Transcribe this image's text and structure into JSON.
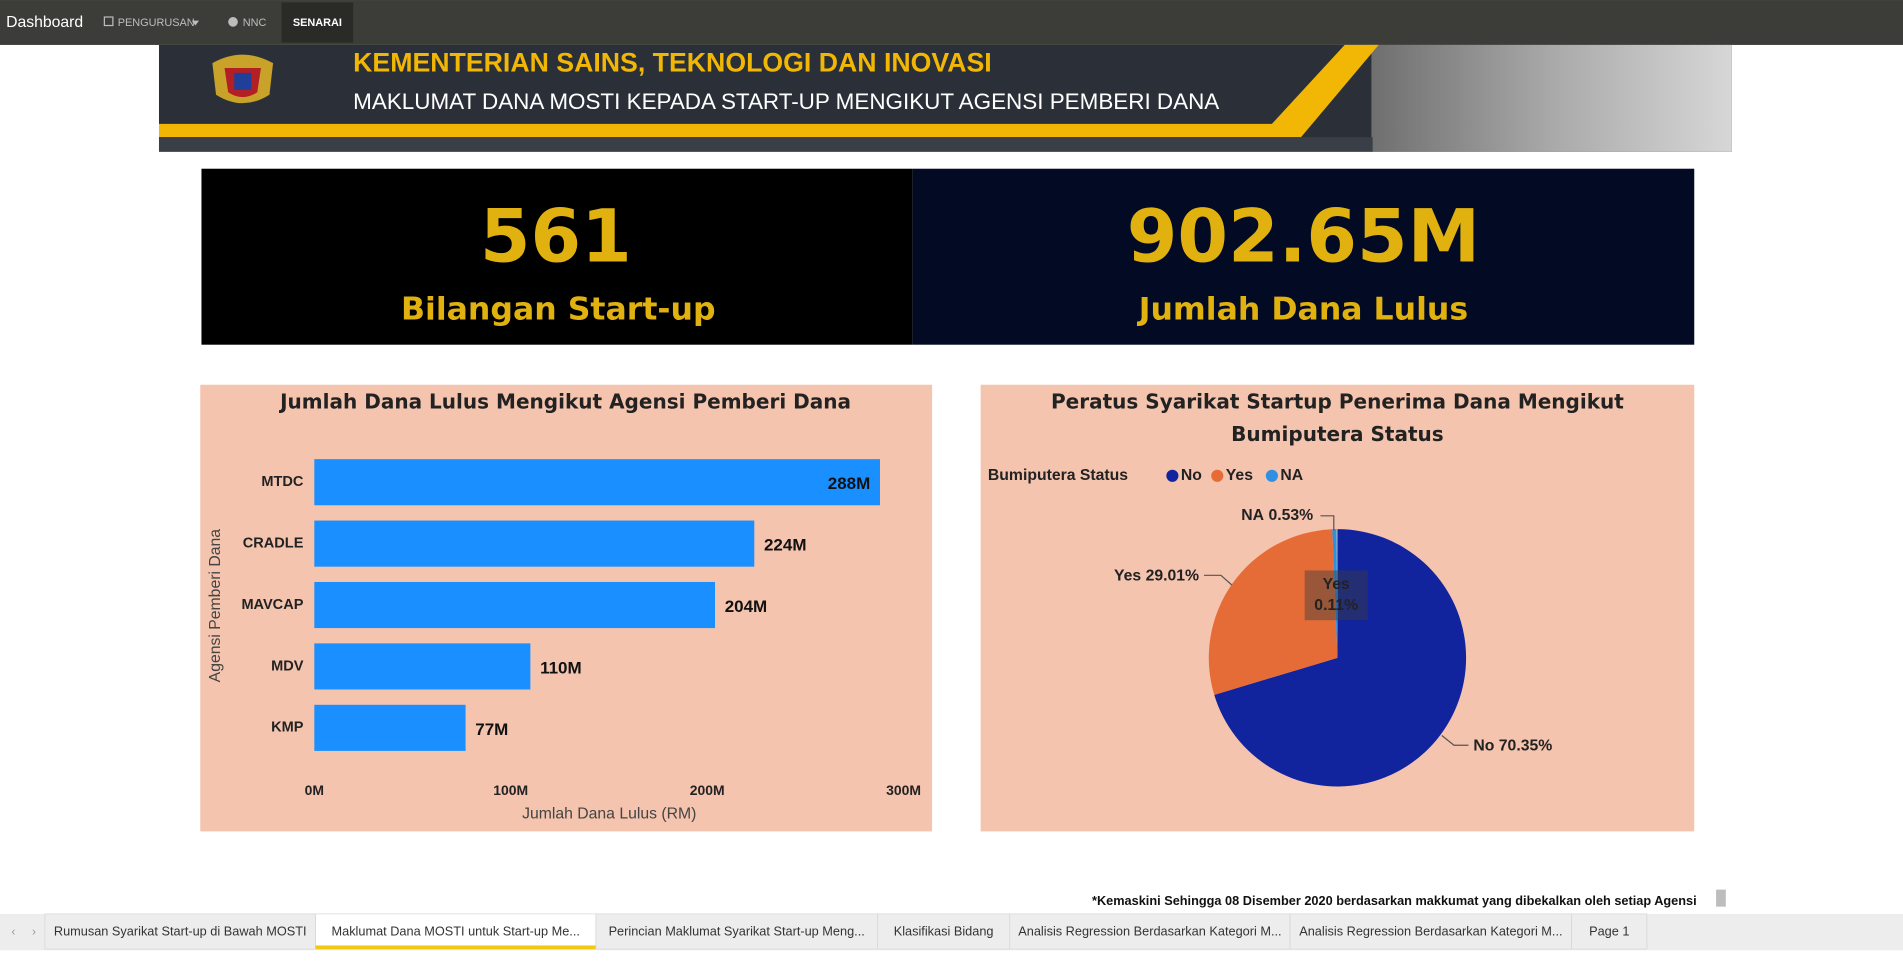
{
  "nav": {
    "brand": "Dashboard",
    "items": [
      "PENGURUSAN",
      "NNC",
      "SENARAI"
    ]
  },
  "banner": {
    "title": "KEMENTERIAN SAINS, TEKNOLOGI DAN INOVASI",
    "subtitle": "MAKLUMAT  DANA MOSTI KEPADA START-UP MENGIKUT AGENSI PEMBERI DANA"
  },
  "kpis": [
    {
      "value": "561",
      "label": "Bilangan Start-up"
    },
    {
      "value": "902.65M",
      "label": "Jumlah Dana Lulus"
    }
  ],
  "chart_data": [
    {
      "type": "bar",
      "orientation": "horizontal",
      "title": "Jumlah Dana Lulus Mengikut Agensi Pemberi Dana",
      "x_label": "Jumlah Dana Lulus (RM)",
      "y_label": "Agensi Pemberi Dana",
      "categories": [
        "MTDC",
        "CRADLE",
        "MAVCAP",
        "MDV",
        "KMP"
      ],
      "values": [
        288,
        224,
        204,
        110,
        77
      ],
      "value_labels": [
        "288M",
        "224M",
        "204M",
        "110M",
        "77M"
      ],
      "color": "#1a8fff",
      "xlim": [
        0,
        300
      ],
      "xticks": [
        {
          "value": 0,
          "label": "0M"
        },
        {
          "value": 100,
          "label": "100M"
        },
        {
          "value": 200,
          "label": "200M"
        },
        {
          "value": 300,
          "label": "300M"
        }
      ]
    },
    {
      "type": "pie",
      "title_lines": [
        "Peratus Syarikat Startup Penerima Dana Mengikut",
        "Bumiputera Status"
      ],
      "legend_title": "Bumiputera Status",
      "categories": [
        "No",
        "Yes",
        "NA"
      ],
      "values": [
        70.35,
        29.01,
        0.53
      ],
      "value_labels": [
        "70.35%",
        "29.01%",
        "0.53%"
      ],
      "colors": [
        "#12239e",
        "#e66c37",
        "#2f8fe0"
      ],
      "tooltip": [
        "Yes",
        "0.11%"
      ]
    }
  ],
  "note": "*Kemaskini Sehingga 08 Disember 2020 berdasarkan makkumat yang dibekalkan oleh setiap Agensi",
  "tabs": [
    "Rumusan Syarikat Start-up di Bawah MOSTI",
    "Maklumat Dana MOSTI untuk Start-up Me...",
    "Perincian Maklumat Syarikat Start-up Meng...",
    "Klasifikasi Bidang",
    "Analisis Regression Berdasarkan Kategori M...",
    "Analisis Regression Berdasarkan Kategori M...",
    "Page 1"
  ]
}
